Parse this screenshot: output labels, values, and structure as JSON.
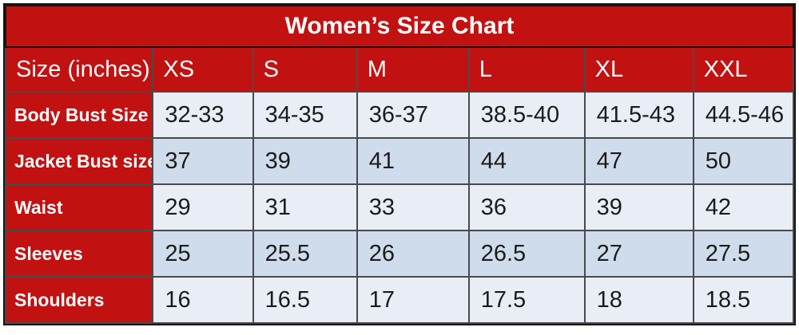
{
  "title": "Women’s Size Chart",
  "chart_data": {
    "type": "table",
    "title": "Women’s Size Chart",
    "columns": [
      "Size (inches)",
      "XS",
      "S",
      "M",
      "L",
      "XL",
      "XXL"
    ],
    "rows": [
      {
        "label": "Body Bust Size",
        "values": [
          "32-33",
          "34-35",
          "36-37",
          "38.5-40",
          "41.5-43",
          "44.5-46"
        ]
      },
      {
        "label": "Jacket Bust size",
        "values": [
          "37",
          "39",
          "41",
          "44",
          "47",
          "50"
        ]
      },
      {
        "label": "Waist",
        "values": [
          "29",
          "31",
          "33",
          "36",
          "39",
          "42"
        ]
      },
      {
        "label": "Sleeves",
        "values": [
          "25",
          "25.5",
          "26",
          "26.5",
          "27",
          "27.5"
        ]
      },
      {
        "label": "Shoulders",
        "values": [
          "16",
          "16.5",
          "17",
          "17.5",
          "18",
          "18.5"
        ]
      }
    ]
  },
  "colors": {
    "red": "#c21111",
    "row-light": "#e9edf6",
    "row-dark": "#cfdceb",
    "header-text": "#ffffff",
    "value-text": "#1b1b1b",
    "border-inner": "#4a4a4a",
    "border-outer": "#151515",
    "page-bg": "#ffffff"
  }
}
